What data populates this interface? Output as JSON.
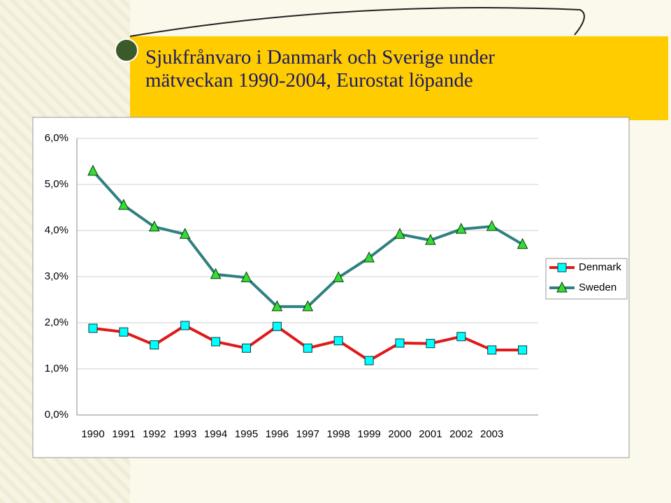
{
  "chart_data": {
    "type": "line",
    "title": "Sjukfrånvaro i Danmark och Sverige under mätveckan 1990-2004, Eurostat löpande",
    "categories": [
      "1990",
      "1991",
      "1992",
      "1993",
      "1994",
      "1995",
      "1996",
      "1997",
      "1998",
      "1999",
      "2000",
      "2001",
      "2002",
      "2003",
      null
    ],
    "series": [
      {
        "name": "Denmark",
        "color": "#e01818",
        "marker": "square",
        "marker_color": "#00ffff",
        "values": [
          1.88,
          1.8,
          1.52,
          1.94,
          1.59,
          1.45,
          1.92,
          1.45,
          1.61,
          1.18,
          1.56,
          1.55,
          1.7,
          1.41,
          1.41
        ]
      },
      {
        "name": "Sweden",
        "color": "#2f8080",
        "marker": "triangle",
        "marker_color": "#33dd33",
        "values": [
          5.29,
          4.55,
          4.08,
          3.92,
          3.05,
          2.98,
          2.35,
          2.35,
          2.98,
          3.41,
          3.92,
          3.79,
          4.03,
          4.09,
          3.7
        ]
      }
    ],
    "ylim": [
      0,
      6
    ],
    "yticks": [
      {
        "value": 0,
        "label": "0,0%"
      },
      {
        "value": 1,
        "label": "1,0%"
      },
      {
        "value": 2,
        "label": "2,0%"
      },
      {
        "value": 3,
        "label": "3,0%"
      },
      {
        "value": 4,
        "label": "4,0%"
      },
      {
        "value": 5,
        "label": "5,0%"
      },
      {
        "value": 6,
        "label": "6,0%"
      }
    ],
    "grid": true,
    "legend": "right"
  }
}
